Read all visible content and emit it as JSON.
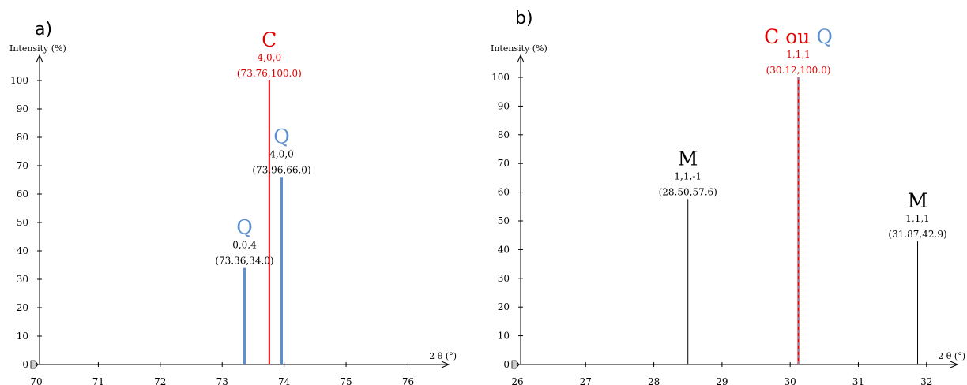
{
  "colors": {
    "cubic": "#e00000",
    "tetragonal": "#5b8fd0",
    "monoclinic": "#000000"
  },
  "chart_data": [
    {
      "type": "bar",
      "panel_label": "a)",
      "ylabel": "Intensity (%)",
      "xlabel": "2 θ (°)",
      "xlim": [
        70,
        76.3
      ],
      "ylim": [
        0,
        100
      ],
      "xticks": [
        70,
        71,
        72,
        73,
        74,
        75,
        76
      ],
      "yticks": [
        0,
        10,
        20,
        30,
        40,
        50,
        60,
        70,
        80,
        90,
        100
      ],
      "peaks": [
        {
          "x": 73.36,
          "y": 34.0,
          "phase": "Q",
          "color": "#5b8fd0",
          "hkl": "0,0,4",
          "coord": "(73.36,34.0)",
          "hkl_color": "#000000"
        },
        {
          "x": 73.76,
          "y": 100.0,
          "phase": "C",
          "color": "#e00000",
          "hkl": "4,0,0",
          "coord": "(73.76,100.0)",
          "hkl_color": "#e00000"
        },
        {
          "x": 73.96,
          "y": 66.0,
          "phase": "Q",
          "color": "#5b8fd0",
          "hkl": "4,0,0",
          "coord": "(73.96,66.0)",
          "hkl_color": "#000000"
        }
      ]
    },
    {
      "type": "bar",
      "panel_label": "b)",
      "ylabel": "Intensity (%)",
      "xlabel": "2 θ (°)",
      "xlim": [
        26,
        32.2
      ],
      "ylim": [
        0,
        100
      ],
      "xticks": [
        26,
        27,
        28,
        29,
        30,
        31,
        32
      ],
      "yticks": [
        0,
        10,
        20,
        30,
        40,
        50,
        60,
        70,
        80,
        90,
        100
      ],
      "peaks": [
        {
          "x": 28.5,
          "y": 57.6,
          "phase": "M",
          "color": "#000000",
          "hkl": "1,1,-1",
          "coord": "(28.50,57.6)",
          "hkl_color": "#000000"
        },
        {
          "x": 30.12,
          "y": 100.0,
          "phase": "C ou Q",
          "phase_parts": [
            "C",
            " ou ",
            "Q"
          ],
          "color": "#e00000",
          "color2": "#5b8fd0",
          "hkl": "1,1,1",
          "coord": "(30.12,100.0)",
          "hkl_color": "#e00000"
        },
        {
          "x": 31.87,
          "y": 42.9,
          "phase": "M",
          "color": "#000000",
          "hkl": "1,1,1",
          "coord": "(31.87,42.9)",
          "hkl_color": "#000000"
        }
      ]
    }
  ]
}
